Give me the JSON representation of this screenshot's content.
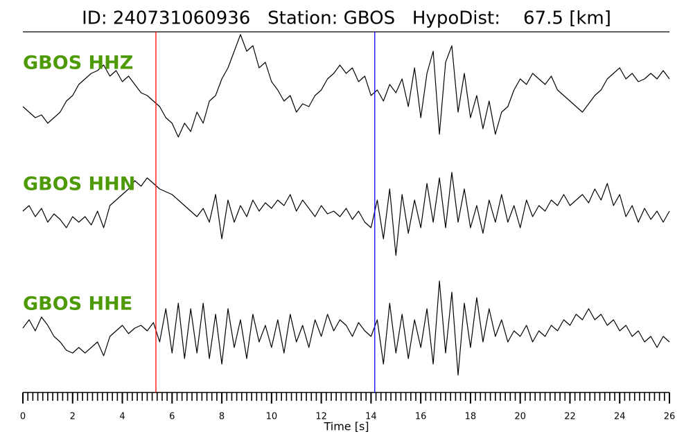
{
  "chart_data": {
    "type": "seismogram",
    "title": "ID: 240731060936   Station: GBOS   HypoDist:    67.5 [km]",
    "xlabel": "Time [s]",
    "xlim": [
      0,
      26
    ],
    "xticks": [
      0,
      2,
      4,
      6,
      8,
      10,
      12,
      14,
      16,
      18,
      20,
      22,
      24,
      26
    ],
    "xminor_step": 0.2,
    "ylim": [
      -10,
      10
    ],
    "label_color": "#4e9a06",
    "vlines": [
      {
        "x": 5.35,
        "color": "#ff0000"
      },
      {
        "x": 14.15,
        "color": "#0000ff"
      }
    ],
    "x": [
      0,
      0.25,
      0.5,
      0.75,
      1,
      1.25,
      1.5,
      1.75,
      2,
      2.25,
      2.5,
      2.75,
      3,
      3.25,
      3.5,
      3.75,
      4,
      4.25,
      4.5,
      4.75,
      5,
      5.25,
      5.5,
      5.75,
      6,
      6.25,
      6.5,
      6.75,
      7,
      7.25,
      7.5,
      7.75,
      8,
      8.25,
      8.5,
      8.75,
      9,
      9.25,
      9.5,
      9.75,
      10,
      10.25,
      10.5,
      10.75,
      11,
      11.25,
      11.5,
      11.75,
      12,
      12.25,
      12.5,
      12.75,
      13,
      13.25,
      13.5,
      13.75,
      14,
      14.25,
      14.5,
      14.75,
      15,
      15.25,
      15.5,
      15.75,
      16,
      16.25,
      16.5,
      16.75,
      17,
      17.25,
      17.5,
      17.75,
      18,
      18.25,
      18.5,
      18.75,
      19,
      19.25,
      19.5,
      19.75,
      20,
      20.25,
      20.5,
      20.75,
      21,
      21.25,
      21.5,
      21.75,
      22,
      22.25,
      22.5,
      22.75,
      23,
      23.25,
      23.5,
      23.75,
      24,
      24.25,
      24.5,
      24.75,
      25,
      25.25,
      25.5,
      25.75,
      26
    ],
    "series": [
      {
        "name": "GBOS HHZ",
        "color": "#000000",
        "values": [
          -3,
          -4,
          -5,
          -4.5,
          -6,
          -5,
          -4,
          -2,
          -1,
          1,
          2,
          3,
          3.5,
          4.5,
          2.5,
          3.5,
          1.5,
          2.5,
          1,
          -0.5,
          -1,
          -2,
          -3,
          -5,
          -6,
          -8.5,
          -6,
          -7.5,
          -4,
          -6,
          -2,
          -1,
          2,
          4,
          7,
          10,
          7,
          8,
          4,
          5,
          1.5,
          0,
          -2,
          -1,
          -4,
          -2.5,
          -3,
          -1,
          0,
          2,
          3,
          4.5,
          3,
          4,
          1.5,
          2.5,
          -1,
          0,
          -2,
          1,
          -0.5,
          2,
          -3,
          4,
          -5,
          3,
          7,
          -8,
          5,
          8,
          -4,
          3,
          -5,
          -1,
          -7,
          -2,
          -8,
          -4,
          -3,
          0,
          2,
          1,
          3,
          2,
          1,
          2.5,
          0,
          -1,
          -2,
          -3,
          -4,
          -2.5,
          -1,
          0,
          2,
          3,
          4,
          2,
          3,
          1.5,
          2,
          3,
          2,
          3.5,
          2
        ]
      },
      {
        "name": "GBOS HHN",
        "color": "#000000",
        "values": [
          0,
          1,
          -1,
          0.5,
          -2,
          -0.5,
          -1.5,
          -3,
          -1,
          -2,
          -1,
          -2.5,
          0,
          -3,
          1,
          2,
          3,
          4,
          5.5,
          4.5,
          6,
          5,
          4,
          3.5,
          3,
          2,
          1,
          0,
          -1,
          0.5,
          -2,
          3,
          -5,
          2,
          -2,
          1,
          -1,
          2,
          0,
          1.5,
          0.5,
          2,
          1,
          3,
          0,
          2,
          0.5,
          -1,
          1,
          -0.5,
          0,
          -1,
          0.5,
          -1.5,
          0,
          -2,
          -3,
          2,
          -5,
          4,
          -8,
          3,
          -4,
          2,
          -3,
          5,
          -2,
          6,
          -3,
          7,
          -2,
          4,
          -3,
          1,
          -4,
          2,
          -2,
          3,
          -2,
          1,
          -3,
          2,
          -1,
          1,
          0,
          2,
          1,
          3,
          1,
          2,
          3,
          1.5,
          4,
          2,
          5,
          1,
          3,
          -1,
          1,
          -2,
          0.5,
          -1.5,
          0,
          -2,
          0
        ]
      },
      {
        "name": "GBOS HHE",
        "color": "#000000",
        "values": [
          0.5,
          2,
          0,
          2.5,
          1,
          -1,
          -2,
          -3.5,
          -4,
          -3,
          -4,
          -3,
          -2,
          -4.5,
          -1,
          0,
          1,
          -0.5,
          0.5,
          1,
          0,
          1.5,
          -2,
          4,
          -4,
          5,
          -5,
          4,
          -4,
          5,
          -5,
          3,
          -6,
          4,
          -3,
          2,
          -5,
          3,
          -2,
          1,
          -3,
          2,
          -4,
          3,
          -2,
          1,
          -3,
          2,
          -1,
          3,
          0,
          2,
          1,
          -1,
          1.5,
          0,
          -1,
          2,
          -6,
          5,
          -4,
          3,
          -5,
          2,
          -3,
          4,
          -6,
          9,
          -4,
          7,
          -8,
          5,
          -3,
          6,
          -2,
          4,
          -1,
          2,
          -2,
          0,
          -1,
          1,
          -2,
          0,
          -1,
          1,
          0,
          2,
          1,
          3,
          2,
          4,
          2,
          3,
          1,
          2,
          0,
          1,
          -1,
          0,
          -2,
          -1,
          -3,
          -1,
          -2
        ]
      }
    ]
  }
}
